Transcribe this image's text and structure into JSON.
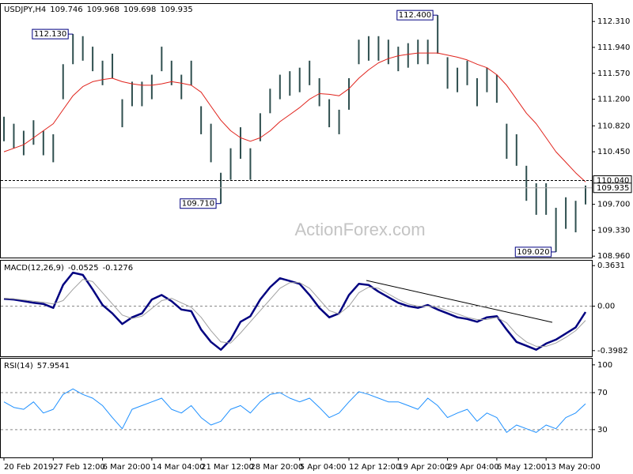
{
  "chart_data": [
    {
      "type": "range-bar",
      "symbol": "USDJPY,H4",
      "last_ohlc": [
        109.746,
        109.968,
        109.698,
        109.935
      ],
      "color": "#2f4f4f",
      "high": [
        110.95,
        110.85,
        110.75,
        110.9,
        110.75,
        110.7,
        111.7,
        112.13,
        112.1,
        111.95,
        111.75,
        111.85,
        111.2,
        111.45,
        111.45,
        111.55,
        111.95,
        111.75,
        111.55,
        111.75,
        111.1,
        110.85,
        110.15,
        110.5,
        110.8,
        110.5,
        111.0,
        111.35,
        111.55,
        111.6,
        111.65,
        111.75,
        111.5,
        111.2,
        111.05,
        111.5,
        112.05,
        112.1,
        112.1,
        112.05,
        111.95,
        112.0,
        112.05,
        112.05,
        112.4,
        111.8,
        111.65,
        111.75,
        111.5,
        111.65,
        111.55,
        110.85,
        110.7,
        110.25,
        110.0,
        110.0,
        109.65,
        109.8,
        109.75,
        109.968
      ],
      "low": [
        110.6,
        110.5,
        110.4,
        110.55,
        110.4,
        110.3,
        111.2,
        111.7,
        111.75,
        111.6,
        111.4,
        111.5,
        110.8,
        111.1,
        111.1,
        111.2,
        111.6,
        111.4,
        111.2,
        111.4,
        110.7,
        110.3,
        109.71,
        110.05,
        110.35,
        110.05,
        110.6,
        111.0,
        111.2,
        111.25,
        111.3,
        111.4,
        111.1,
        110.8,
        110.7,
        111.05,
        111.7,
        111.75,
        111.75,
        111.7,
        111.6,
        111.65,
        111.7,
        111.7,
        111.85,
        111.35,
        111.3,
        111.4,
        111.1,
        111.3,
        111.15,
        110.35,
        110.25,
        109.75,
        109.55,
        109.55,
        109.02,
        109.35,
        109.3,
        109.698
      ],
      "ma": {
        "color": "#e0231c",
        "values": [
          110.45,
          110.5,
          110.55,
          110.65,
          110.75,
          110.85,
          111.05,
          111.25,
          111.38,
          111.45,
          111.48,
          111.5,
          111.45,
          111.42,
          111.4,
          111.4,
          111.42,
          111.45,
          111.43,
          111.4,
          111.3,
          111.1,
          110.9,
          110.75,
          110.65,
          110.6,
          110.65,
          110.75,
          110.88,
          110.98,
          111.08,
          111.2,
          111.28,
          111.27,
          111.25,
          111.35,
          111.5,
          111.62,
          111.72,
          111.78,
          111.82,
          111.84,
          111.86,
          111.86,
          111.86,
          111.83,
          111.8,
          111.76,
          111.7,
          111.65,
          111.55,
          111.4,
          111.2,
          111.0,
          110.85,
          110.65,
          110.45,
          110.3,
          110.15,
          110.02
        ]
      },
      "ylim": [
        108.94,
        112.56
      ],
      "yticks": [
        {
          "value": 112.31,
          "label": "112.310"
        },
        {
          "value": 111.94,
          "label": "111.940"
        },
        {
          "value": 111.57,
          "label": "111.570"
        },
        {
          "value": 111.2,
          "label": "111.200"
        },
        {
          "value": 110.82,
          "label": "110.820"
        },
        {
          "value": 110.45,
          "label": "110.450"
        },
        {
          "value": 109.7,
          "label": "109.700"
        },
        {
          "value": 109.33,
          "label": "109.330"
        },
        {
          "value": 108.96,
          "label": "108.960"
        }
      ],
      "price_levels": [
        {
          "value": 110.04,
          "label": "110.040",
          "style": "dashed"
        },
        {
          "value": 109.935,
          "label": "109.935",
          "style": "solid"
        }
      ],
      "annotations": [
        {
          "value": 112.13,
          "label": "112.130"
        },
        {
          "value": 109.71,
          "label": "109.710"
        },
        {
          "value": 112.4,
          "label": "112.400"
        },
        {
          "value": 109.02,
          "label": "109.020"
        }
      ],
      "watermark": "ActionForex.com"
    },
    {
      "type": "line",
      "title": "MACD(12,26,9)",
      "series": [
        {
          "color": "#000080",
          "width": 2.5,
          "values": [
            0.065,
            0.06,
            0.045,
            0.03,
            0.02,
            -0.015,
            0.19,
            0.3,
            0.28,
            0.15,
            0.01,
            -0.065,
            -0.16,
            -0.1,
            -0.065,
            0.06,
            0.1,
            0.045,
            -0.03,
            -0.045,
            -0.21,
            -0.32,
            -0.39,
            -0.3,
            -0.14,
            -0.09,
            0.06,
            0.17,
            0.25,
            0.225,
            0.2,
            0.1,
            -0.015,
            -0.1,
            -0.065,
            0.1,
            0.2,
            0.19,
            0.13,
            0.08,
            0.03,
            0,
            -0.015,
            0.01,
            -0.03,
            -0.065,
            -0.1,
            -0.115,
            -0.14,
            -0.1,
            -0.09,
            -0.21,
            -0.32,
            -0.355,
            -0.39,
            -0.335,
            -0.3,
            -0.245,
            -0.19,
            -0.0525
          ]
        },
        {
          "color": "#a0a0a0",
          "width": 1,
          "values": [
            0.07,
            0.065,
            0.055,
            0.045,
            0.035,
            0.02,
            0.05,
            0.15,
            0.24,
            0.22,
            0.12,
            0.02,
            -0.08,
            -0.11,
            -0.09,
            -0.02,
            0.05,
            0.07,
            0.03,
            -0.01,
            -0.1,
            -0.22,
            -0.32,
            -0.33,
            -0.24,
            -0.14,
            -0.04,
            0.06,
            0.16,
            0.21,
            0.21,
            0.16,
            0.06,
            -0.04,
            -0.07,
            0.0,
            0.12,
            0.17,
            0.16,
            0.11,
            0.06,
            0.02,
            0.0,
            0.0,
            -0.01,
            -0.04,
            -0.07,
            -0.1,
            -0.12,
            -0.12,
            -0.1,
            -0.15,
            -0.25,
            -0.32,
            -0.36,
            -0.36,
            -0.33,
            -0.28,
            -0.22,
            -0.1276
          ]
        }
      ],
      "ylim": [
        -0.449,
        0.407
      ],
      "yticks": [
        0.3631,
        {
          "value": 0,
          "label": "0.00"
        },
        -0.3982
      ],
      "dashed_levels": [
        0
      ]
    },
    {
      "type": "line",
      "title": "RSI(14)",
      "series": [
        {
          "color": "#1e90ff",
          "width": 1,
          "values": [
            60,
            54,
            52,
            60,
            48,
            52,
            68,
            74,
            68,
            64,
            56,
            43,
            31,
            52,
            56,
            60,
            64,
            52,
            48,
            56,
            43,
            35,
            39,
            52,
            56,
            48,
            60,
            68,
            70,
            64,
            60,
            64,
            54,
            43,
            48,
            60,
            71,
            68,
            64,
            60,
            60,
            56,
            52,
            64,
            56,
            43,
            48,
            52,
            39,
            48,
            43,
            27,
            35,
            31,
            27,
            35,
            31,
            43,
            48,
            57.9541
          ]
        }
      ],
      "ylim": [
        0,
        106.7
      ],
      "yticks": [
        100,
        70,
        30
      ],
      "dashed_levels": [
        70,
        30
      ],
      "categories": [
        "20 Feb 2019",
        null,
        null,
        null,
        null,
        "27 Feb 12:00",
        null,
        null,
        null,
        null,
        "6 Mar 20:00",
        null,
        null,
        null,
        null,
        "14 Mar 04:00",
        null,
        null,
        null,
        null,
        "21 Mar 12:00",
        null,
        null,
        null,
        null,
        "28 Mar 20:00",
        null,
        null,
        null,
        null,
        "5 Apr 04:00",
        null,
        null,
        null,
        null,
        "12 Apr 12:00",
        null,
        null,
        null,
        null,
        "19 Apr 20:00",
        null,
        null,
        null,
        null,
        "29 Apr 04:00",
        null,
        null,
        null,
        null,
        "6 May 12:00",
        null,
        null,
        null,
        null,
        "13 May 20:00",
        null,
        null,
        null,
        null
      ]
    }
  ]
}
